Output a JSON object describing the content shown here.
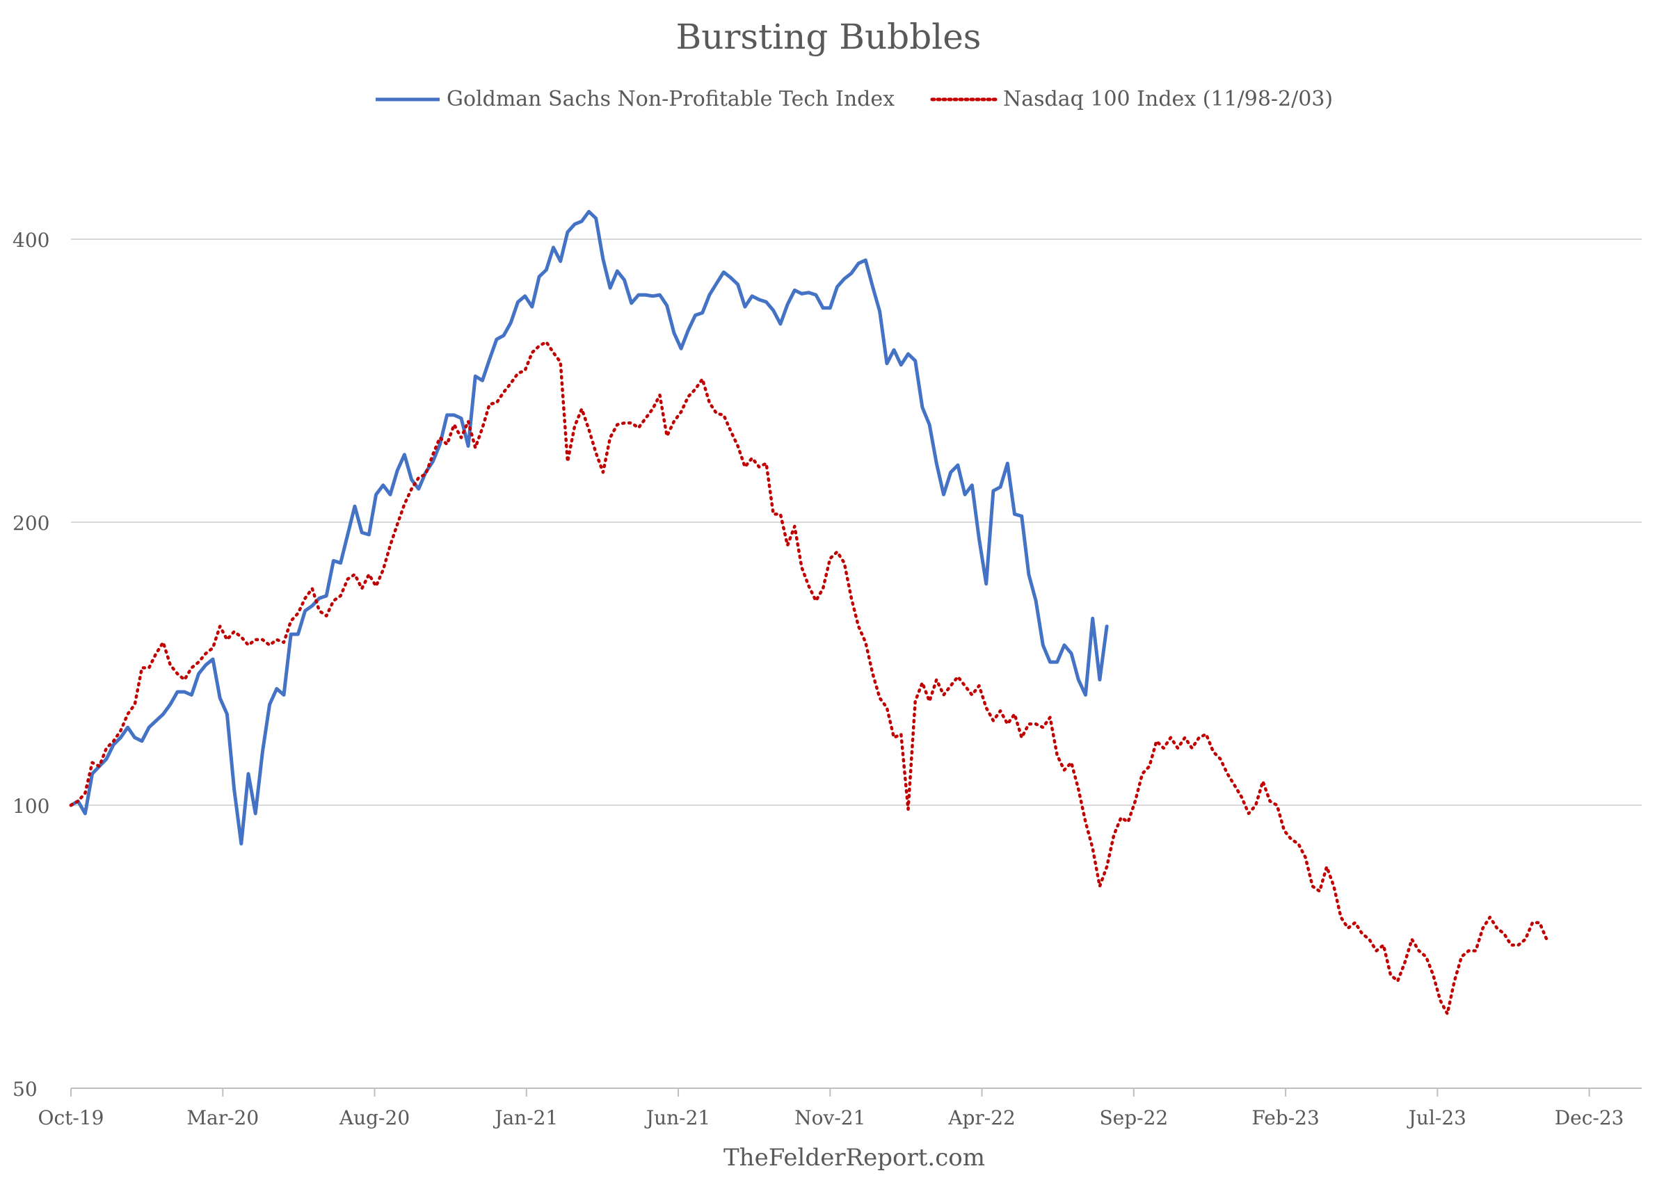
{
  "colors": {
    "series_1": "#4472C4",
    "series_2": "#C00000",
    "grid": "#D9D9D9",
    "axis": "#BFBFBF",
    "text": "#595959"
  },
  "chart_data": {
    "type": "line",
    "title": "Bursting Bubbles",
    "footer": "TheFelderReport.com",
    "legend_position": "top",
    "grid": true,
    "y_scale": "log",
    "ylim": [
      50,
      480
    ],
    "y_ticks": [
      50,
      100,
      200,
      400
    ],
    "y_tick_labels": [
      "50",
      "100",
      "200",
      "400"
    ],
    "x_range_weeks": [
      0,
      221
    ],
    "x_ticks": [
      0,
      21.4,
      42.8,
      64.2,
      85.6,
      107.0,
      128.4,
      149.8,
      171.2,
      192.6,
      214.0
    ],
    "x_tick_labels": [
      "Oct-19",
      "Mar-20",
      "Aug-20",
      "Jan-21",
      "Jun-21",
      "Nov-21",
      "Apr-22",
      "Sep-22",
      "Feb-23",
      "Jul-23",
      "Dec-23"
    ],
    "series": [
      {
        "name": "Goldman Sachs Non-Profitable Tech Index",
        "style": "solid",
        "values": [
          100,
          101,
          98,
          108,
          110,
          112,
          116,
          118,
          121,
          118,
          117,
          121,
          123,
          125,
          128,
          132,
          132,
          131,
          138,
          141,
          143,
          130,
          125,
          104,
          91,
          108,
          98,
          114,
          128,
          133,
          131,
          152,
          152,
          161,
          163,
          166,
          167,
          182,
          181,
          194,
          208,
          195,
          194,
          214,
          219,
          214,
          227,
          236,
          222,
          217,
          226,
          232,
          242,
          260,
          260,
          258,
          241,
          286,
          283,
          298,
          313,
          316,
          326,
          343,
          348,
          339,
          365,
          371,
          392,
          379,
          407,
          415,
          418,
          428,
          421,
          381,
          355,
          370,
          362,
          342,
          349,
          349,
          348,
          349,
          340,
          318,
          306,
          320,
          332,
          334,
          349,
          359,
          369,
          364,
          358,
          339,
          348,
          345,
          343,
          336,
          325,
          341,
          353,
          350,
          351,
          349,
          338,
          338,
          356,
          363,
          368,
          377,
          380,
          356,
          335,
          295,
          305,
          294,
          302,
          297,
          265,
          254,
          231,
          214,
          226,
          230,
          214,
          219,
          192,
          172,
          216,
          218,
          231,
          204,
          203,
          176,
          165,
          148,
          142,
          142,
          148,
          145,
          136,
          131,
          158,
          136,
          155
        ]
      },
      {
        "name": "Nasdaq 100 Index (11/98-2/03)",
        "style": "dotted",
        "values": [
          100,
          101,
          103,
          111,
          110,
          115,
          117,
          120,
          125,
          128,
          140,
          140,
          145,
          149,
          141,
          138,
          136,
          140,
          142,
          145,
          147,
          155,
          150,
          153,
          151,
          148,
          150,
          150,
          148,
          150,
          149,
          157,
          160,
          166,
          170,
          161,
          159,
          165,
          167,
          174,
          176,
          170,
          176,
          171,
          178,
          189,
          199,
          209,
          217,
          223,
          225,
          236,
          246,
          242,
          254,
          246,
          256,
          240,
          252,
          267,
          268,
          275,
          281,
          288,
          290,
          303,
          308,
          311,
          303,
          296,
          232,
          253,
          264,
          251,
          237,
          226,
          246,
          254,
          255,
          255,
          252,
          258,
          264,
          273,
          247,
          256,
          262,
          272,
          277,
          284,
          268,
          261,
          260,
          250,
          241,
          229,
          234,
          229,
          231,
          204,
          204,
          189,
          198,
          179,
          171,
          165,
          170,
          183,
          186,
          181,
          166,
          155,
          149,
          138,
          130,
          127,
          118,
          119,
          99,
          129,
          135,
          129,
          136,
          131,
          134,
          137,
          134,
          131,
          134,
          127,
          123,
          126,
          122,
          125,
          118,
          122,
          122,
          121,
          124,
          113,
          109,
          111,
          104,
          96,
          90,
          82,
          86,
          93,
          97,
          96,
          101,
          108,
          110,
          117,
          115,
          118,
          115,
          118,
          115,
          118,
          119,
          114,
          112,
          108,
          105,
          102,
          98,
          100,
          106,
          101,
          100,
          94,
          92,
          91,
          88,
          82,
          81,
          86,
          82,
          76,
          74,
          75,
          73,
          72,
          70,
          71,
          66,
          65,
          68,
          72,
          70,
          69,
          66,
          62,
          60,
          65,
          69,
          70,
          70,
          74,
          76,
          74,
          73,
          71,
          71,
          72,
          75,
          75,
          72
        ]
      }
    ]
  }
}
